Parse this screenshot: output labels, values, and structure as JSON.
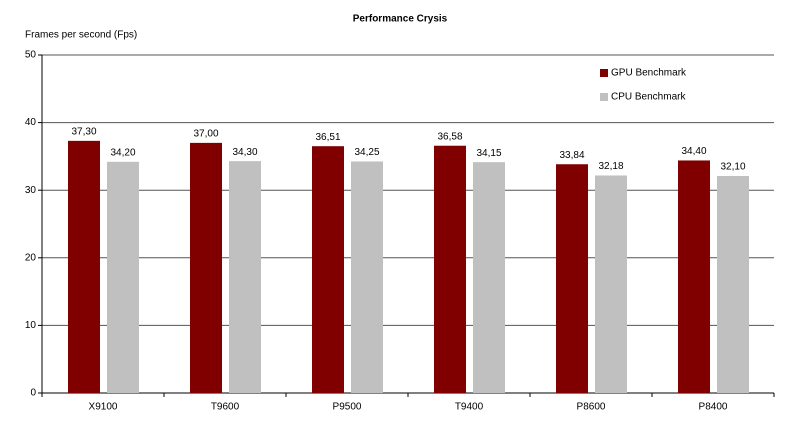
{
  "chart_data": {
    "type": "bar",
    "title": "Performance Crysis",
    "y_label": "Frames per second (Fps)",
    "categories": [
      "X9100",
      "T9600",
      "P9500",
      "T9400",
      "P8600",
      "P8400"
    ],
    "series": [
      {
        "name": "GPU Benchmark",
        "color": "#800000",
        "values": [
          37.3,
          37.0,
          36.51,
          36.58,
          33.84,
          34.4
        ],
        "value_labels": [
          "37,30",
          "37,00",
          "36,51",
          "36,58",
          "33,84",
          "34,40"
        ]
      },
      {
        "name": "CPU Benchmark",
        "color": "#c0c0c0",
        "values": [
          34.2,
          34.3,
          34.25,
          34.15,
          32.18,
          32.1
        ],
        "value_labels": [
          "34,20",
          "34,30",
          "34,25",
          "34,15",
          "32,18",
          "32,10"
        ]
      }
    ],
    "ylim": [
      0,
      50
    ],
    "yticks": [
      0,
      10,
      20,
      30,
      40,
      50
    ],
    "grid": true,
    "legend": "top-right"
  }
}
